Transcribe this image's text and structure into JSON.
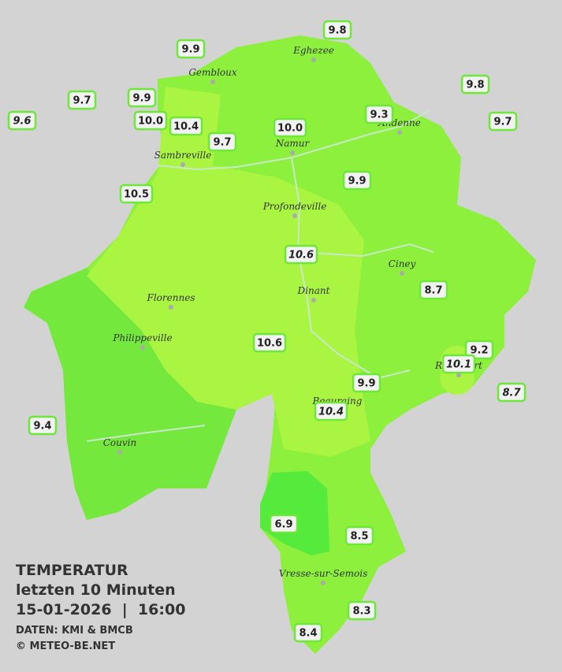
{
  "cities": [
    "Eghezee",
    "Gembloux",
    "Andenne",
    "Namur",
    "Sambreville",
    "Profondeville",
    "Ciney",
    "Dinant",
    "Florennes",
    "Philippeville",
    "Rochefort",
    "Beauraing",
    "Couvin",
    "Vresse-sur-Semois"
  ],
  "stations": [
    {
      "label": "9.8",
      "italic": false
    },
    {
      "label": "9.9",
      "italic": false
    },
    {
      "label": "9.8",
      "italic": false
    },
    {
      "label": "9.7",
      "italic": false
    },
    {
      "label": "9.9",
      "italic": false
    },
    {
      "label": "9.6",
      "italic": true
    },
    {
      "label": "10.0",
      "italic": false
    },
    {
      "label": "10.4",
      "italic": false
    },
    {
      "label": "9.3",
      "italic": false
    },
    {
      "label": "10.0",
      "italic": false
    },
    {
      "label": "9.7",
      "italic": false
    },
    {
      "label": "9.7",
      "italic": false
    },
    {
      "label": "9.9",
      "italic": false
    },
    {
      "label": "10.5",
      "italic": false
    },
    {
      "label": "10.6",
      "italic": true
    },
    {
      "label": "8.7",
      "italic": false
    },
    {
      "label": "10.6",
      "italic": false
    },
    {
      "label": "9.2",
      "italic": false
    },
    {
      "label": "10.1",
      "italic": true
    },
    {
      "label": "8.7",
      "italic": true
    },
    {
      "label": "9.9",
      "italic": false
    },
    {
      "label": "10.4",
      "italic": true
    },
    {
      "label": "9.4",
      "italic": false
    },
    {
      "label": "6.9",
      "italic": false
    },
    {
      "label": "8.5",
      "italic": false
    },
    {
      "label": "8.3",
      "italic": false
    },
    {
      "label": "8.4",
      "italic": false
    }
  ],
  "legend": {
    "title": "TEMPERATUR",
    "period": "letzten 10 Minuten",
    "datetime": "15-01-2026  |  16:00",
    "source": "DATEN: KMI & BMCB",
    "copyright": "© METEO-BE.NET"
  }
}
